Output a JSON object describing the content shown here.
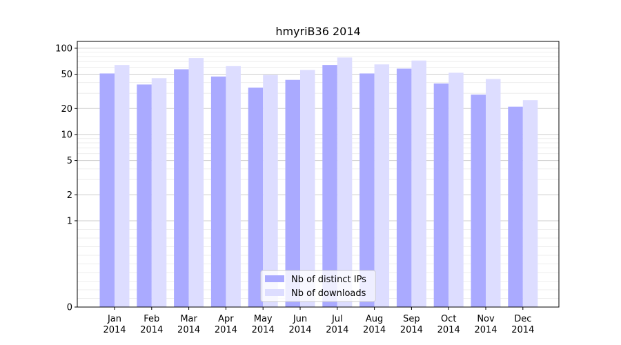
{
  "chart_data": {
    "type": "bar",
    "title": "hmyriB36 2014",
    "xlabel": "",
    "ylabel": "",
    "yscale": "symlog",
    "ylim": [
      0,
      120
    ],
    "yticks": [
      0,
      1,
      2,
      5,
      10,
      20,
      50,
      100
    ],
    "grid": true,
    "legend_placement": "lower-center",
    "categories": [
      "Jan\n2014",
      "Feb\n2014",
      "Mar\n2014",
      "Apr\n2014",
      "May\n2014",
      "Jun\n2014",
      "Jul\n2014",
      "Aug\n2014",
      "Sep\n2014",
      "Oct\n2014",
      "Nov\n2014",
      "Dec\n2014"
    ],
    "series": [
      {
        "name": "Nb of distinct IPs",
        "color": "#aaaaff",
        "values": [
          51,
          38,
          57,
          47,
          35,
          43,
          64,
          51,
          58,
          39,
          29,
          21
        ]
      },
      {
        "name": "Nb of downloads",
        "color": "#ddddff",
        "values": [
          64,
          45,
          77,
          62,
          49,
          56,
          78,
          65,
          72,
          52,
          44,
          25
        ]
      }
    ]
  }
}
